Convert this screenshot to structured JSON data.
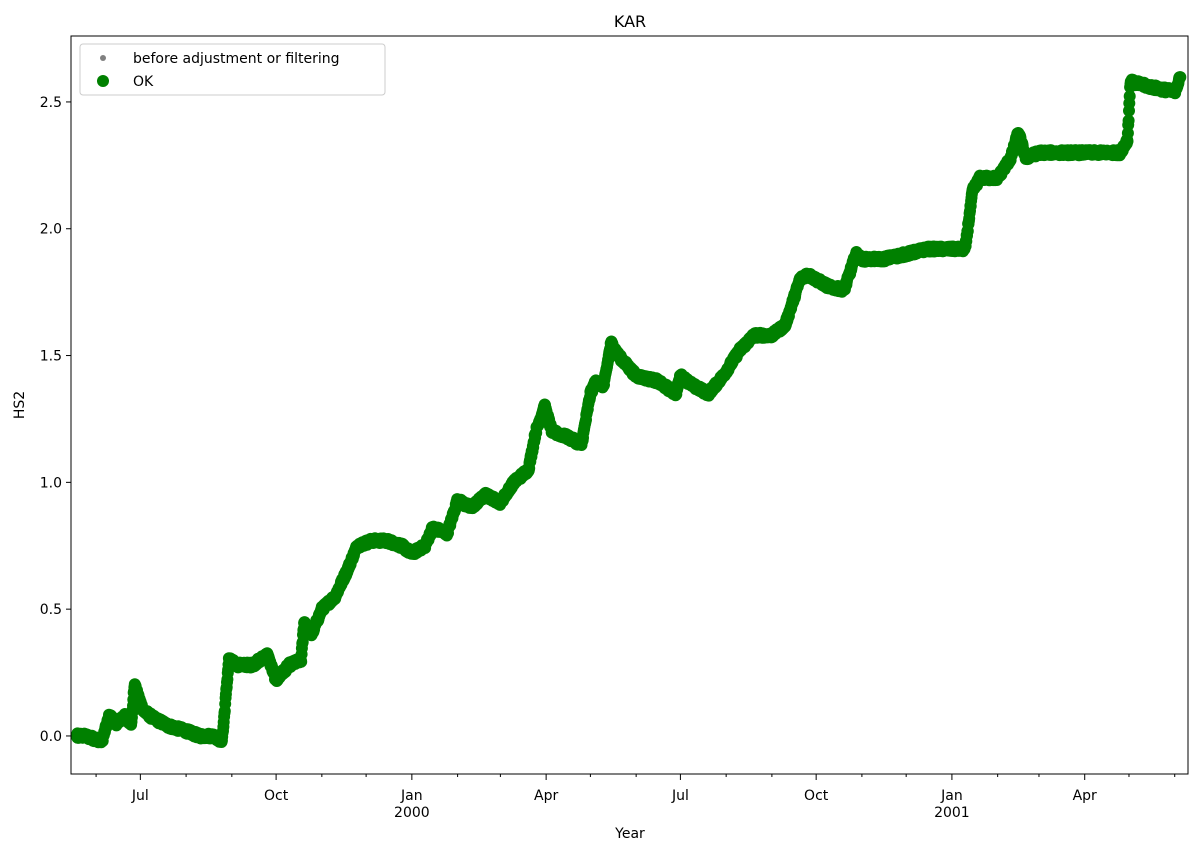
{
  "chart_data": {
    "type": "scatter",
    "title": "KAR",
    "xlabel": "Year",
    "ylabel": "HS2",
    "xlim": [
      "1999-05-15",
      "2001-06-10"
    ],
    "ylim": [
      -0.15,
      2.76
    ],
    "grid": false,
    "legend_position": "top-left",
    "y_ticks": [
      "0.0",
      "0.5",
      "1.0",
      "1.5",
      "2.0",
      "2.5"
    ],
    "x_major_ticks": [
      {
        "date": "1999-07-01",
        "label": "Jul",
        "sublabel": ""
      },
      {
        "date": "1999-10-01",
        "label": "Oct",
        "sublabel": ""
      },
      {
        "date": "2000-01-01",
        "label": "Jan",
        "sublabel": "2000"
      },
      {
        "date": "2000-04-01",
        "label": "Apr",
        "sublabel": ""
      },
      {
        "date": "2000-07-01",
        "label": "Jul",
        "sublabel": ""
      },
      {
        "date": "2000-10-01",
        "label": "Oct",
        "sublabel": ""
      },
      {
        "date": "2001-01-01",
        "label": "Jan",
        "sublabel": "2001"
      },
      {
        "date": "2001-04-01",
        "label": "Apr",
        "sublabel": ""
      }
    ],
    "x_minor_ticks": [
      "1999-06-01",
      "1999-08-01",
      "1999-09-01",
      "1999-11-01",
      "1999-12-01",
      "2000-02-01",
      "2000-03-01",
      "2000-05-01",
      "2000-06-01",
      "2000-08-01",
      "2000-09-01",
      "2000-11-01",
      "2000-12-01",
      "2001-02-01",
      "2001-03-01",
      "2001-05-01",
      "2001-06-01"
    ],
    "series": [
      {
        "name": "before adjustment or filtering",
        "color": "#808080",
        "marker": "small-dot",
        "x": [],
        "y": []
      },
      {
        "name": "OK",
        "color": "#008000",
        "marker": "dot",
        "x": [
          "1999-05-15",
          "1999-05-25",
          "1999-06-05",
          "1999-06-10",
          "1999-06-15",
          "1999-06-20",
          "1999-06-25",
          "1999-06-27",
          "1999-07-03",
          "1999-07-10",
          "1999-07-20",
          "1999-08-01",
          "1999-08-10",
          "1999-08-20",
          "1999-08-25",
          "1999-08-26",
          "1999-08-30",
          "1999-09-05",
          "1999-09-15",
          "1999-09-25",
          "1999-10-01",
          "1999-10-10",
          "1999-10-18",
          "1999-10-20",
          "1999-10-25",
          "1999-11-01",
          "1999-11-10",
          "1999-11-18",
          "1999-11-25",
          "1999-12-05",
          "1999-12-15",
          "1999-12-25",
          "2000-01-01",
          "2000-01-10",
          "2000-01-15",
          "2000-01-25",
          "2000-02-01",
          "2000-02-10",
          "2000-02-20",
          "2000-03-01",
          "2000-03-10",
          "2000-03-20",
          "2000-03-25",
          "2000-03-31",
          "2000-04-05",
          "2000-04-15",
          "2000-04-25",
          "2000-05-01",
          "2000-05-05",
          "2000-05-10",
          "2000-05-15",
          "2000-05-20",
          "2000-06-01",
          "2000-06-15",
          "2000-06-28",
          "2000-07-01",
          "2000-07-10",
          "2000-07-20",
          "2000-07-30",
          "2000-08-10",
          "2000-08-20",
          "2000-09-01",
          "2000-09-10",
          "2000-09-20",
          "2000-09-25",
          "2000-10-01",
          "2000-10-10",
          "2000-10-20",
          "2000-10-28",
          "2000-11-01",
          "2000-11-15",
          "2000-12-01",
          "2000-12-15",
          "2001-01-01",
          "2001-01-10",
          "2001-01-15",
          "2001-01-20",
          "2001-02-01",
          "2001-02-10",
          "2001-02-15",
          "2001-02-20",
          "2001-03-01",
          "2001-03-15",
          "2001-04-01",
          "2001-04-15",
          "2001-04-25",
          "2001-04-30",
          "2001-05-02",
          "2001-05-15",
          "2001-06-01",
          "2001-06-05"
        ],
        "y": [
          0.0,
          0.0,
          -0.02,
          0.08,
          0.05,
          0.08,
          0.05,
          0.2,
          0.1,
          0.07,
          0.04,
          0.02,
          0.0,
          0.0,
          -0.02,
          0.02,
          0.3,
          0.28,
          0.28,
          0.32,
          0.22,
          0.28,
          0.3,
          0.45,
          0.4,
          0.5,
          0.55,
          0.65,
          0.75,
          0.77,
          0.77,
          0.75,
          0.72,
          0.75,
          0.82,
          0.8,
          0.93,
          0.9,
          0.95,
          0.92,
          1.0,
          1.05,
          1.2,
          1.3,
          1.2,
          1.18,
          1.15,
          1.35,
          1.4,
          1.38,
          1.55,
          1.5,
          1.42,
          1.4,
          1.35,
          1.42,
          1.38,
          1.35,
          1.42,
          1.52,
          1.58,
          1.58,
          1.62,
          1.8,
          1.82,
          1.8,
          1.77,
          1.76,
          1.9,
          1.88,
          1.88,
          1.9,
          1.92,
          1.92,
          1.92,
          2.15,
          2.2,
          2.2,
          2.28,
          2.38,
          2.28,
          2.3,
          2.3,
          2.3,
          2.3,
          2.3,
          2.35,
          2.58,
          2.56,
          2.54,
          2.6
        ]
      }
    ]
  }
}
